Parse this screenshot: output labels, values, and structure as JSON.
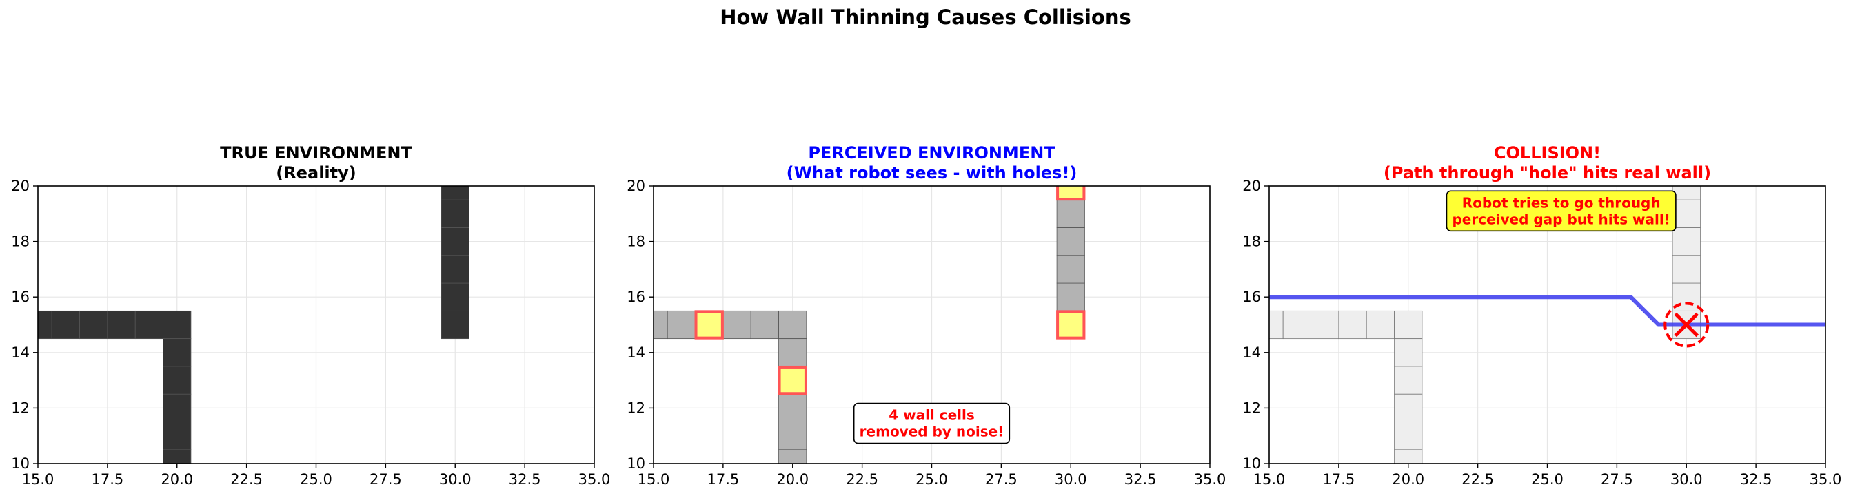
{
  "figure": {
    "suptitle": "How Wall Thinning Causes Collisions"
  },
  "chart_data": [
    {
      "type": "heatmap",
      "title_line1": "TRUE ENVIRONMENT",
      "title_line2": "(Reality)",
      "title_color": "#000000",
      "xlim": [
        15,
        35
      ],
      "ylim": [
        10,
        20
      ],
      "xticks": [
        "15.0",
        "17.5",
        "20.0",
        "22.5",
        "25.0",
        "27.5",
        "30.0",
        "32.5",
        "35.0"
      ],
      "yticks": [
        "10",
        "12",
        "14",
        "16",
        "18",
        "20"
      ],
      "grid": true,
      "cell_color": "#333333",
      "wall_cells": [
        [
          15,
          15
        ],
        [
          16,
          15
        ],
        [
          17,
          15
        ],
        [
          18,
          15
        ],
        [
          19,
          15
        ],
        [
          20,
          15
        ],
        [
          20,
          14
        ],
        [
          20,
          13
        ],
        [
          20,
          12
        ],
        [
          20,
          11
        ],
        [
          20,
          10
        ],
        [
          30,
          15
        ],
        [
          30,
          16
        ],
        [
          30,
          17
        ],
        [
          30,
          18
        ],
        [
          30,
          19
        ],
        [
          30,
          20
        ]
      ],
      "noise_holes": [],
      "annotation": "",
      "path": [],
      "collision_marker": null
    },
    {
      "type": "heatmap",
      "title_line1": "PERCEIVED ENVIRONMENT",
      "title_line2": "(What robot sees - with holes!)",
      "title_color": "#0000ff",
      "xlim": [
        15,
        35
      ],
      "ylim": [
        10,
        20
      ],
      "xticks": [
        "15.0",
        "17.5",
        "20.0",
        "22.5",
        "25.0",
        "27.5",
        "30.0",
        "32.5",
        "35.0"
      ],
      "yticks": [
        "10",
        "12",
        "14",
        "16",
        "18",
        "20"
      ],
      "grid": true,
      "cell_color": "#b3b3b3",
      "wall_cells": [
        [
          15,
          15
        ],
        [
          16,
          15
        ],
        [
          18,
          15
        ],
        [
          19,
          15
        ],
        [
          20,
          15
        ],
        [
          20,
          14
        ],
        [
          20,
          12
        ],
        [
          20,
          11
        ],
        [
          20,
          10
        ],
        [
          30,
          16
        ],
        [
          30,
          17
        ],
        [
          30,
          18
        ],
        [
          30,
          19
        ]
      ],
      "noise_holes": [
        [
          17,
          15
        ],
        [
          20,
          13
        ],
        [
          30,
          15
        ],
        [
          30,
          20
        ]
      ],
      "hole_fill": "#ffff80",
      "hole_edge": "#ff5555",
      "annotation": "4 wall cells\nremoved by noise!",
      "annotation_x": 25,
      "annotation_y": 11.45,
      "annotation_color": "#ff0000",
      "annotation_bg": "#ffffff",
      "path": [],
      "collision_marker": null
    },
    {
      "type": "line",
      "title_line1": "COLLISION!",
      "title_line2": "(Path through \"hole\" hits real wall)",
      "title_color": "#ff0000",
      "xlim": [
        15,
        35
      ],
      "ylim": [
        10,
        20
      ],
      "xticks": [
        "15.0",
        "17.5",
        "20.0",
        "22.5",
        "25.0",
        "27.5",
        "30.0",
        "32.5",
        "35.0"
      ],
      "yticks": [
        "10",
        "12",
        "14",
        "16",
        "18",
        "20"
      ],
      "grid": true,
      "cell_color": "#eeeeee",
      "wall_cells": [
        [
          15,
          15
        ],
        [
          16,
          15
        ],
        [
          17,
          15
        ],
        [
          18,
          15
        ],
        [
          19,
          15
        ],
        [
          20,
          15
        ],
        [
          20,
          14
        ],
        [
          20,
          13
        ],
        [
          20,
          12
        ],
        [
          20,
          11
        ],
        [
          20,
          10
        ],
        [
          30,
          15
        ],
        [
          30,
          16
        ],
        [
          30,
          17
        ],
        [
          30,
          18
        ],
        [
          30,
          19
        ],
        [
          30,
          20
        ]
      ],
      "noise_holes": [],
      "annotation": "Robot tries to go through\nperceived gap but hits wall!",
      "annotation_x": 25.5,
      "annotation_y": 19.1,
      "annotation_color": "#ff0000",
      "annotation_bg": "#ffff33",
      "path": [
        [
          15,
          16
        ],
        [
          28,
          16
        ],
        [
          29,
          15
        ],
        [
          35,
          15
        ]
      ],
      "path_color": "#4444ee",
      "collision_marker": [
        30,
        15
      ],
      "marker_color": "#ff0000"
    }
  ]
}
